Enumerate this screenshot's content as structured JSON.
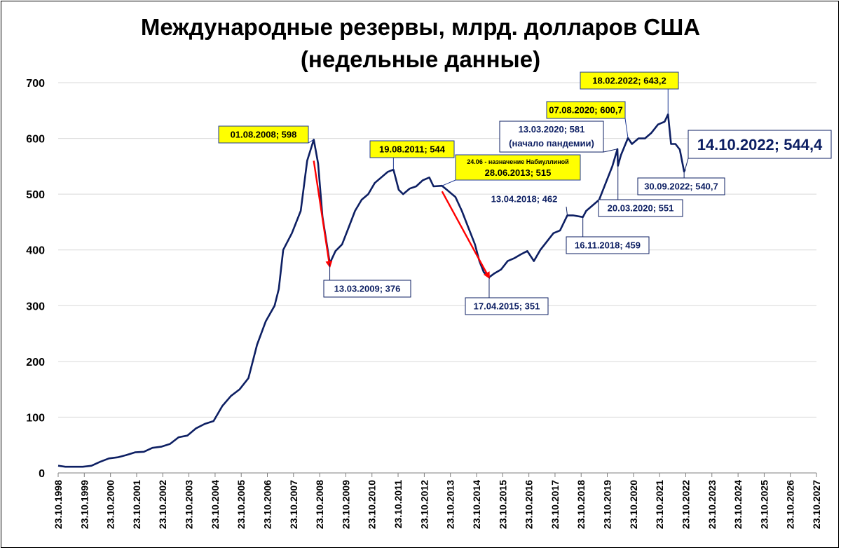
{
  "title": {
    "line1": "Международные резервы, млрд. долларов США",
    "line2": "(недельные данные)"
  },
  "colors": {
    "series": "#0d1f63",
    "grid": "#d9d9d9",
    "axis": "#7f7f7f",
    "highlight": "#ffff00",
    "arrow": "#ff0000",
    "callout_text": "#0d1f63"
  },
  "chart_data": {
    "type": "line",
    "title": "Международные резервы, млрд. долларов США (недельные данные)",
    "xlabel": "",
    "ylabel": "",
    "ylim": [
      0,
      700
    ],
    "yticks": [
      0,
      100,
      200,
      300,
      400,
      500,
      600,
      700
    ],
    "xlim": [
      "23.10.1998",
      "23.10.2027"
    ],
    "xtick_labels": [
      "23.10.1998",
      "23.10.1999",
      "23.10.2000",
      "23.10.2001",
      "23.10.2002",
      "23.10.2003",
      "23.10.2004",
      "23.10.2005",
      "23.10.2006",
      "23.10.2007",
      "23.10.2008",
      "23.10.2009",
      "23.10.2010",
      "23.10.2011",
      "23.10.2012",
      "23.10.2013",
      "23.10.2014",
      "23.10.2015",
      "23.10.2016",
      "23.10.2017",
      "23.10.2018",
      "23.10.2019",
      "23.10.2020",
      "23.10.2021",
      "23.10.2022",
      "23.10.2023",
      "23.10.2024",
      "23.10.2025",
      "23.10.2026",
      "23.10.2027"
    ],
    "grid": true,
    "legend": "none",
    "series": [
      {
        "x": [
          "23.10.1998",
          "01.02.1999",
          "01.06.1999",
          "01.10.1999",
          "01.02.2000",
          "01.06.2000",
          "01.10.2000",
          "01.02.2001",
          "01.06.2001",
          "01.10.2001",
          "01.02.2002",
          "01.06.2002",
          "01.10.2002",
          "01.02.2003",
          "01.06.2003",
          "01.10.2003",
          "01.02.2004",
          "01.06.2004",
          "01.10.2004",
          "01.02.2005",
          "01.06.2005",
          "01.10.2005",
          "01.02.2006",
          "01.06.2006",
          "01.10.2006",
          "01.02.2007",
          "01.04.2007",
          "01.06.2007",
          "01.10.2007",
          "01.02.2008",
          "01.05.2008",
          "01.08.2008",
          "01.10.2008",
          "01.12.2008",
          "13.03.2009",
          "01.06.2009",
          "01.09.2009",
          "01.12.2009",
          "01.03.2010",
          "01.06.2010",
          "01.09.2010",
          "01.12.2010",
          "01.03.2011",
          "01.06.2011",
          "19.08.2011",
          "01.11.2011",
          "01.01.2012",
          "01.04.2012",
          "01.07.2012",
          "01.10.2012",
          "01.01.2013",
          "01.03.2013",
          "28.06.2013",
          "01.10.2013",
          "01.01.2014",
          "01.04.2014",
          "01.07.2014",
          "01.10.2014",
          "01.12.2014",
          "01.02.2015",
          "17.04.2015",
          "01.07.2015",
          "01.10.2015",
          "01.01.2016",
          "01.04.2016",
          "01.07.2016",
          "01.10.2016",
          "01.01.2017",
          "01.04.2017",
          "01.07.2017",
          "01.10.2017",
          "01.01.2018",
          "13.04.2018",
          "01.07.2018",
          "16.11.2018",
          "01.01.2019",
          "01.04.2019",
          "01.07.2019",
          "01.10.2019",
          "01.01.2020",
          "13.03.2020",
          "20.03.2020",
          "01.05.2020",
          "07.08.2020",
          "01.10.2020",
          "01.01.2021",
          "01.04.2021",
          "01.07.2021",
          "01.10.2021",
          "01.01.2022",
          "18.02.2022",
          "01.04.2022",
          "01.06.2022",
          "01.08.2022",
          "30.09.2022",
          "14.10.2022"
        ],
        "y": [
          13,
          11,
          11,
          11,
          13,
          20,
          26,
          28,
          32,
          37,
          38,
          45,
          47,
          52,
          64,
          67,
          80,
          88,
          93,
          120,
          138,
          150,
          170,
          230,
          272,
          300,
          330,
          400,
          430,
          470,
          560,
          598,
          555,
          460,
          376,
          398,
          410,
          440,
          470,
          490,
          500,
          520,
          530,
          540,
          544,
          508,
          500,
          510,
          514,
          525,
          530,
          514,
          515,
          505,
          495,
          470,
          440,
          410,
          380,
          360,
          351,
          358,
          365,
          380,
          385,
          392,
          398,
          380,
          400,
          415,
          430,
          435,
          462,
          462,
          459,
          470,
          480,
          490,
          520,
          550,
          581,
          551,
          570,
          600.7,
          590,
          600,
          600,
          610,
          625,
          630,
          643.2,
          590,
          590,
          580,
          540.7,
          544.4
        ]
      }
    ],
    "annotations": [
      {
        "text": "01.08.2008; 598",
        "x": "01.08.2008",
        "y": 598,
        "style": "highlight"
      },
      {
        "text": "13.03.2009; 376",
        "x": "13.03.2009",
        "y": 376,
        "style": "box"
      },
      {
        "text": "19.08.2011; 544",
        "x": "19.08.2011",
        "y": 544,
        "style": "highlight"
      },
      {
        "text_line1": "24.06 - назначение Набиуллиной",
        "text_line2": "28.06.2013; 515",
        "x": "28.06.2013",
        "y": 515,
        "style": "highlight"
      },
      {
        "text": "17.04.2015; 351",
        "x": "17.04.2015",
        "y": 351,
        "style": "box"
      },
      {
        "text": "13.04.2018; 462",
        "x": "13.04.2018",
        "y": 462,
        "style": "plain"
      },
      {
        "text": "16.11.2018; 459",
        "x": "16.11.2018",
        "y": 459,
        "style": "box"
      },
      {
        "text_line1": "13.03.2020; 581",
        "text_line2": "(начало пандемии)",
        "x": "13.03.2020",
        "y": 581,
        "style": "box"
      },
      {
        "text": "20.03.2020; 551",
        "x": "20.03.2020",
        "y": 551,
        "style": "box"
      },
      {
        "text": "07.08.2020; 600,7",
        "x": "07.08.2020",
        "y": 600.7,
        "style": "highlight"
      },
      {
        "text": "18.02.2022; 643,2",
        "x": "18.02.2022",
        "y": 643.2,
        "style": "highlight"
      },
      {
        "text": "30.09.2022; 540,7",
        "x": "30.09.2022",
        "y": 540.7,
        "style": "box"
      },
      {
        "text": "14.10.2022; 544,4",
        "x": "14.10.2022",
        "y": 544.4,
        "style": "big"
      }
    ],
    "arrows": [
      {
        "from_x": "01.08.2008",
        "from_y": 560,
        "to_x": "13.03.2009",
        "to_y": 370
      },
      {
        "from_x": "28.06.2013",
        "from_y": 505,
        "to_x": "17.04.2015",
        "to_y": 350
      }
    ]
  }
}
